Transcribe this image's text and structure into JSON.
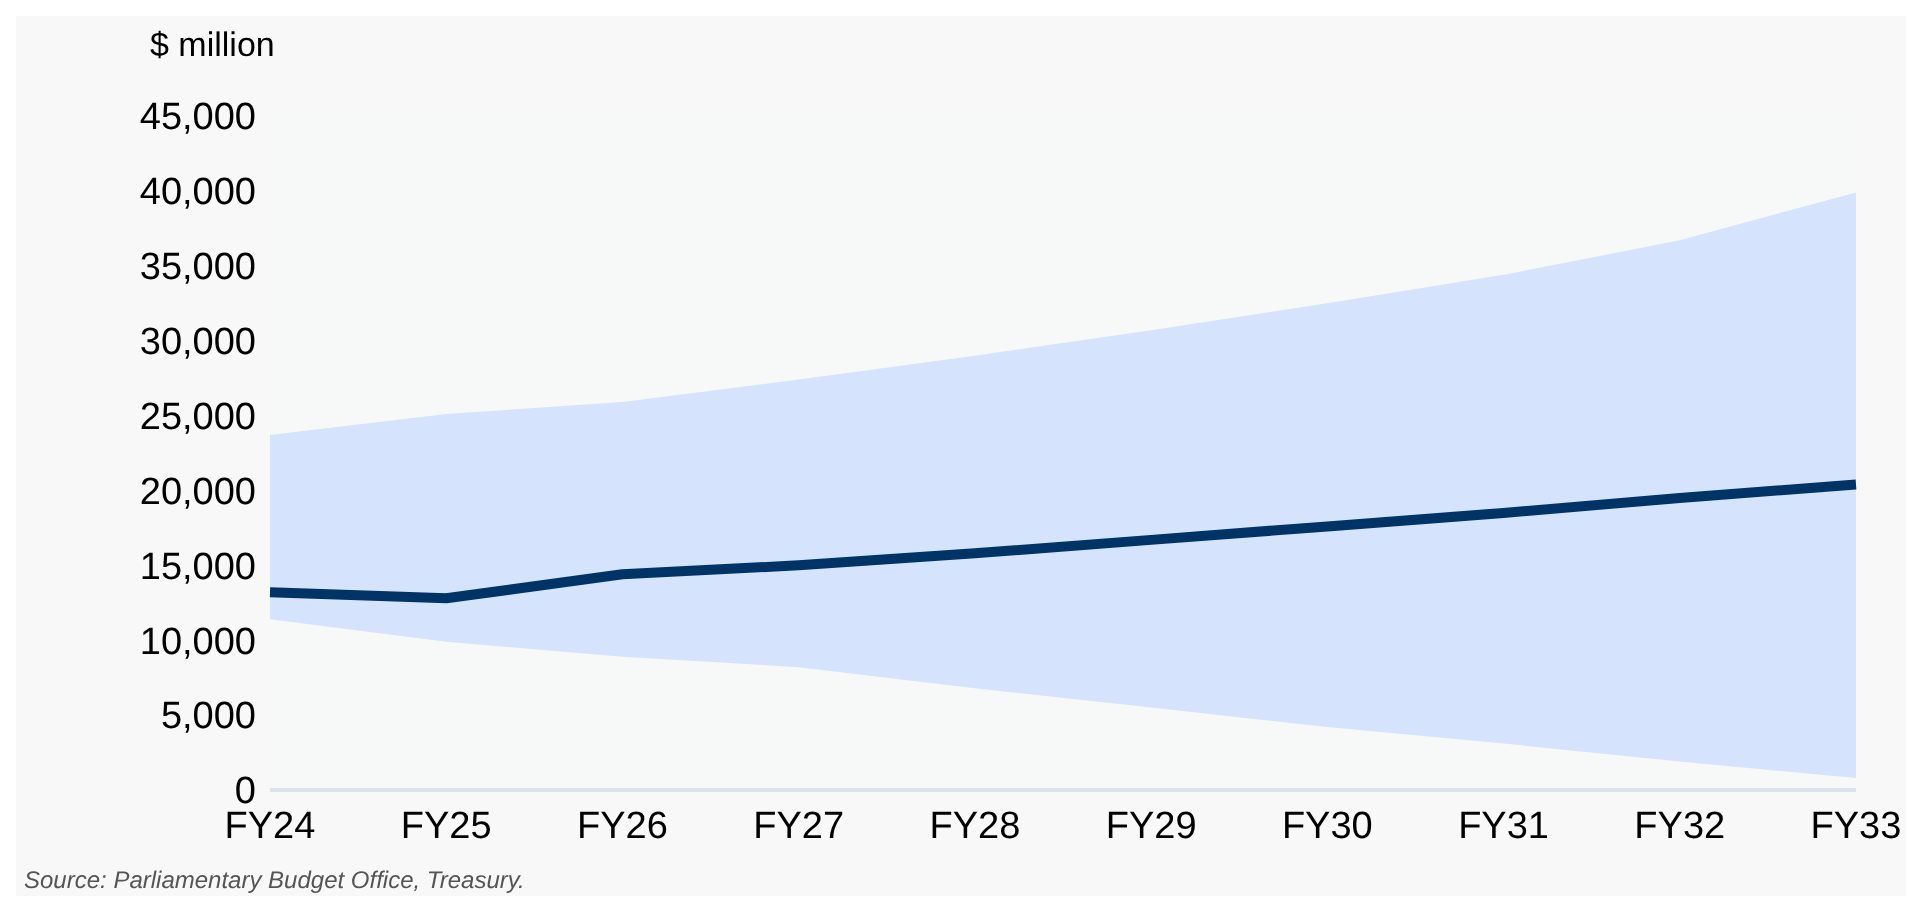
{
  "chart_data": {
    "type": "line",
    "ylabel": "$ million",
    "categories": [
      "FY24",
      "FY25",
      "FY26",
      "FY27",
      "FY28",
      "FY29",
      "FY30",
      "FY31",
      "FY32",
      "FY33"
    ],
    "series": [
      {
        "color": "#003366",
        "values": [
          13200,
          12800,
          14400,
          15000,
          15800,
          16700,
          17600,
          18500,
          19500,
          20400
        ],
        "lower": [
          11400,
          9900,
          8900,
          8200,
          6800,
          5500,
          4200,
          3100,
          1900,
          800
        ],
        "upper": [
          23700,
          25100,
          25900,
          27400,
          29000,
          30700,
          32500,
          34400,
          36700,
          39900
        ]
      }
    ],
    "ylim": [
      0,
      45000
    ],
    "yticks": [
      {
        "value": 0,
        "label": "0"
      },
      {
        "value": 5000,
        "label": "5,000"
      },
      {
        "value": 10000,
        "label": "10,000"
      },
      {
        "value": 15000,
        "label": "15,000"
      },
      {
        "value": 20000,
        "label": "20,000"
      },
      {
        "value": 25000,
        "label": "25,000"
      },
      {
        "value": 30000,
        "label": "30,000"
      },
      {
        "value": 35000,
        "label": "35,000"
      },
      {
        "value": 40000,
        "label": "40,000"
      },
      {
        "value": 45000,
        "label": "45,000"
      }
    ],
    "grid": false,
    "marker": "none",
    "line_style": "solid",
    "annotations": [
      "Source: Parliamentary Budget Office, Treasury."
    ]
  }
}
